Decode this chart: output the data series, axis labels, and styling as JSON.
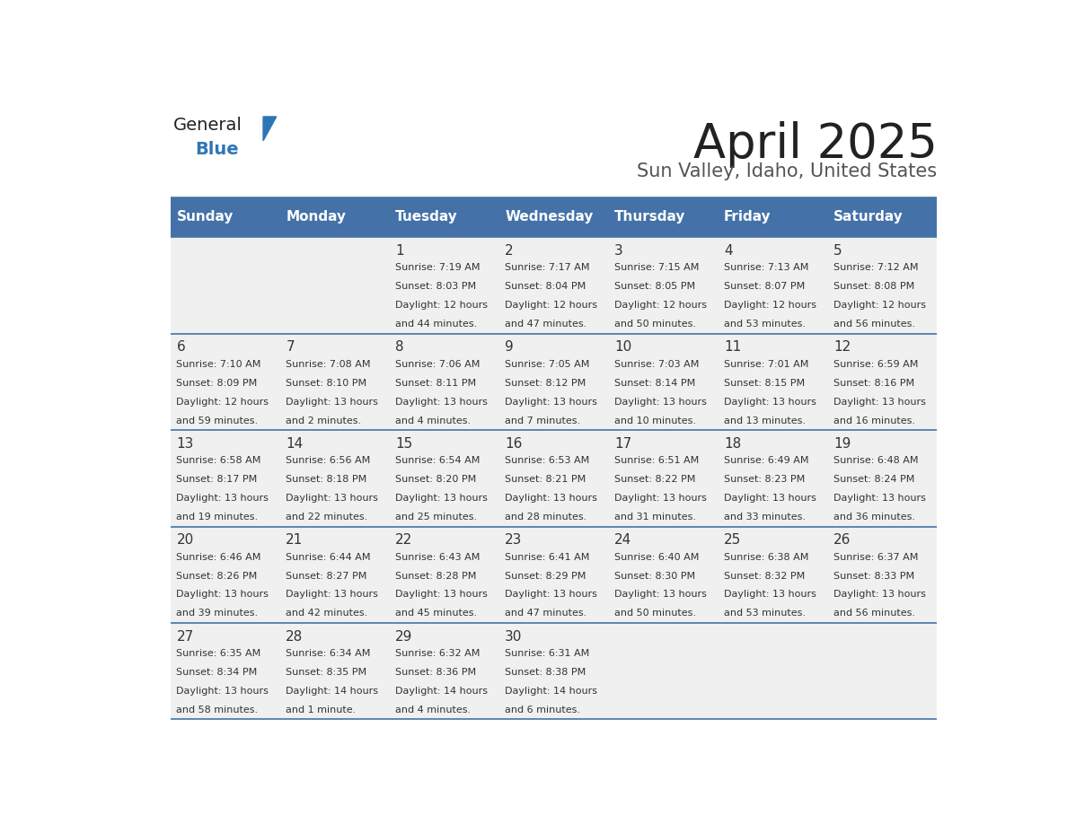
{
  "title": "April 2025",
  "subtitle": "Sun Valley, Idaho, United States",
  "header_color": "#4472a8",
  "header_text_color": "#ffffff",
  "cell_bg_color": "#f0f0f0",
  "title_color": "#222222",
  "subtitle_color": "#555555",
  "line_color": "#4472a8",
  "logo_general_color": "#222222",
  "logo_blue_color": "#2e75b6",
  "text_color": "#333333",
  "day_headers": [
    "Sunday",
    "Monday",
    "Tuesday",
    "Wednesday",
    "Thursday",
    "Friday",
    "Saturday"
  ],
  "days": [
    {
      "day": null,
      "col": 0,
      "row": 0
    },
    {
      "day": null,
      "col": 1,
      "row": 0
    },
    {
      "day": 1,
      "col": 2,
      "row": 0,
      "sunrise": "7:19 AM",
      "sunset": "8:03 PM",
      "daylight_line1": "Daylight: 12 hours",
      "daylight_line2": "and 44 minutes."
    },
    {
      "day": 2,
      "col": 3,
      "row": 0,
      "sunrise": "7:17 AM",
      "sunset": "8:04 PM",
      "daylight_line1": "Daylight: 12 hours",
      "daylight_line2": "and 47 minutes."
    },
    {
      "day": 3,
      "col": 4,
      "row": 0,
      "sunrise": "7:15 AM",
      "sunset": "8:05 PM",
      "daylight_line1": "Daylight: 12 hours",
      "daylight_line2": "and 50 minutes."
    },
    {
      "day": 4,
      "col": 5,
      "row": 0,
      "sunrise": "7:13 AM",
      "sunset": "8:07 PM",
      "daylight_line1": "Daylight: 12 hours",
      "daylight_line2": "and 53 minutes."
    },
    {
      "day": 5,
      "col": 6,
      "row": 0,
      "sunrise": "7:12 AM",
      "sunset": "8:08 PM",
      "daylight_line1": "Daylight: 12 hours",
      "daylight_line2": "and 56 minutes."
    },
    {
      "day": 6,
      "col": 0,
      "row": 1,
      "sunrise": "7:10 AM",
      "sunset": "8:09 PM",
      "daylight_line1": "Daylight: 12 hours",
      "daylight_line2": "and 59 minutes."
    },
    {
      "day": 7,
      "col": 1,
      "row": 1,
      "sunrise": "7:08 AM",
      "sunset": "8:10 PM",
      "daylight_line1": "Daylight: 13 hours",
      "daylight_line2": "and 2 minutes."
    },
    {
      "day": 8,
      "col": 2,
      "row": 1,
      "sunrise": "7:06 AM",
      "sunset": "8:11 PM",
      "daylight_line1": "Daylight: 13 hours",
      "daylight_line2": "and 4 minutes."
    },
    {
      "day": 9,
      "col": 3,
      "row": 1,
      "sunrise": "7:05 AM",
      "sunset": "8:12 PM",
      "daylight_line1": "Daylight: 13 hours",
      "daylight_line2": "and 7 minutes."
    },
    {
      "day": 10,
      "col": 4,
      "row": 1,
      "sunrise": "7:03 AM",
      "sunset": "8:14 PM",
      "daylight_line1": "Daylight: 13 hours",
      "daylight_line2": "and 10 minutes."
    },
    {
      "day": 11,
      "col": 5,
      "row": 1,
      "sunrise": "7:01 AM",
      "sunset": "8:15 PM",
      "daylight_line1": "Daylight: 13 hours",
      "daylight_line2": "and 13 minutes."
    },
    {
      "day": 12,
      "col": 6,
      "row": 1,
      "sunrise": "6:59 AM",
      "sunset": "8:16 PM",
      "daylight_line1": "Daylight: 13 hours",
      "daylight_line2": "and 16 minutes."
    },
    {
      "day": 13,
      "col": 0,
      "row": 2,
      "sunrise": "6:58 AM",
      "sunset": "8:17 PM",
      "daylight_line1": "Daylight: 13 hours",
      "daylight_line2": "and 19 minutes."
    },
    {
      "day": 14,
      "col": 1,
      "row": 2,
      "sunrise": "6:56 AM",
      "sunset": "8:18 PM",
      "daylight_line1": "Daylight: 13 hours",
      "daylight_line2": "and 22 minutes."
    },
    {
      "day": 15,
      "col": 2,
      "row": 2,
      "sunrise": "6:54 AM",
      "sunset": "8:20 PM",
      "daylight_line1": "Daylight: 13 hours",
      "daylight_line2": "and 25 minutes."
    },
    {
      "day": 16,
      "col": 3,
      "row": 2,
      "sunrise": "6:53 AM",
      "sunset": "8:21 PM",
      "daylight_line1": "Daylight: 13 hours",
      "daylight_line2": "and 28 minutes."
    },
    {
      "day": 17,
      "col": 4,
      "row": 2,
      "sunrise": "6:51 AM",
      "sunset": "8:22 PM",
      "daylight_line1": "Daylight: 13 hours",
      "daylight_line2": "and 31 minutes."
    },
    {
      "day": 18,
      "col": 5,
      "row": 2,
      "sunrise": "6:49 AM",
      "sunset": "8:23 PM",
      "daylight_line1": "Daylight: 13 hours",
      "daylight_line2": "and 33 minutes."
    },
    {
      "day": 19,
      "col": 6,
      "row": 2,
      "sunrise": "6:48 AM",
      "sunset": "8:24 PM",
      "daylight_line1": "Daylight: 13 hours",
      "daylight_line2": "and 36 minutes."
    },
    {
      "day": 20,
      "col": 0,
      "row": 3,
      "sunrise": "6:46 AM",
      "sunset": "8:26 PM",
      "daylight_line1": "Daylight: 13 hours",
      "daylight_line2": "and 39 minutes."
    },
    {
      "day": 21,
      "col": 1,
      "row": 3,
      "sunrise": "6:44 AM",
      "sunset": "8:27 PM",
      "daylight_line1": "Daylight: 13 hours",
      "daylight_line2": "and 42 minutes."
    },
    {
      "day": 22,
      "col": 2,
      "row": 3,
      "sunrise": "6:43 AM",
      "sunset": "8:28 PM",
      "daylight_line1": "Daylight: 13 hours",
      "daylight_line2": "and 45 minutes."
    },
    {
      "day": 23,
      "col": 3,
      "row": 3,
      "sunrise": "6:41 AM",
      "sunset": "8:29 PM",
      "daylight_line1": "Daylight: 13 hours",
      "daylight_line2": "and 47 minutes."
    },
    {
      "day": 24,
      "col": 4,
      "row": 3,
      "sunrise": "6:40 AM",
      "sunset": "8:30 PM",
      "daylight_line1": "Daylight: 13 hours",
      "daylight_line2": "and 50 minutes."
    },
    {
      "day": 25,
      "col": 5,
      "row": 3,
      "sunrise": "6:38 AM",
      "sunset": "8:32 PM",
      "daylight_line1": "Daylight: 13 hours",
      "daylight_line2": "and 53 minutes."
    },
    {
      "day": 26,
      "col": 6,
      "row": 3,
      "sunrise": "6:37 AM",
      "sunset": "8:33 PM",
      "daylight_line1": "Daylight: 13 hours",
      "daylight_line2": "and 56 minutes."
    },
    {
      "day": 27,
      "col": 0,
      "row": 4,
      "sunrise": "6:35 AM",
      "sunset": "8:34 PM",
      "daylight_line1": "Daylight: 13 hours",
      "daylight_line2": "and 58 minutes."
    },
    {
      "day": 28,
      "col": 1,
      "row": 4,
      "sunrise": "6:34 AM",
      "sunset": "8:35 PM",
      "daylight_line1": "Daylight: 14 hours",
      "daylight_line2": "and 1 minute."
    },
    {
      "day": 29,
      "col": 2,
      "row": 4,
      "sunrise": "6:32 AM",
      "sunset": "8:36 PM",
      "daylight_line1": "Daylight: 14 hours",
      "daylight_line2": "and 4 minutes."
    },
    {
      "day": 30,
      "col": 3,
      "row": 4,
      "sunrise": "6:31 AM",
      "sunset": "8:38 PM",
      "daylight_line1": "Daylight: 14 hours",
      "daylight_line2": "and 6 minutes."
    }
  ]
}
